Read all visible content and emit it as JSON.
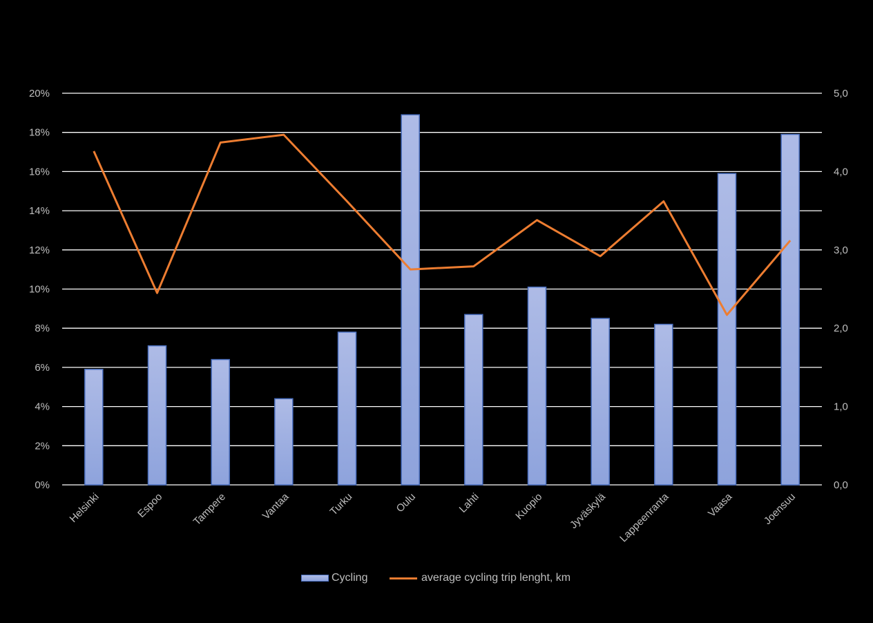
{
  "chart_data": {
    "type": "bar",
    "categories": [
      "Helsinki",
      "Espoo",
      "Tampere",
      "Vantaa",
      "Turku",
      "Oulu",
      "Lahti",
      "Kuopio",
      "Jyväskylä",
      "Lappeenranta",
      "Vaasa",
      "Joensuu"
    ],
    "series": [
      {
        "name": "Cycling",
        "type": "bar",
        "axis": "left",
        "values": [
          5.9,
          7.1,
          6.4,
          4.4,
          7.8,
          18.9,
          8.7,
          10.1,
          8.5,
          8.2,
          15.9,
          17.9
        ],
        "color": "#8ea3dc"
      },
      {
        "name": "average cycling trip lenght, km",
        "type": "line",
        "axis": "right",
        "values": [
          4.26,
          2.45,
          4.37,
          4.47,
          3.62,
          2.75,
          2.79,
          3.38,
          2.92,
          3.62,
          2.17,
          3.12
        ],
        "color": "#ed7d31"
      }
    ],
    "y_left": {
      "min": 0,
      "max": 20,
      "ticks": [
        "0%",
        "2%",
        "4%",
        "6%",
        "8%",
        "10%",
        "12%",
        "14%",
        "16%",
        "18%",
        "20%"
      ]
    },
    "y_right": {
      "min": 0,
      "max": 5,
      "ticks": [
        "0,0",
        "1,0",
        "2,0",
        "3,0",
        "4,0",
        "5,0"
      ]
    },
    "grid": true,
    "legend_position": "bottom",
    "background": "#000000",
    "text_color": "#bfbfbf",
    "grid_color": "#ffffff"
  }
}
